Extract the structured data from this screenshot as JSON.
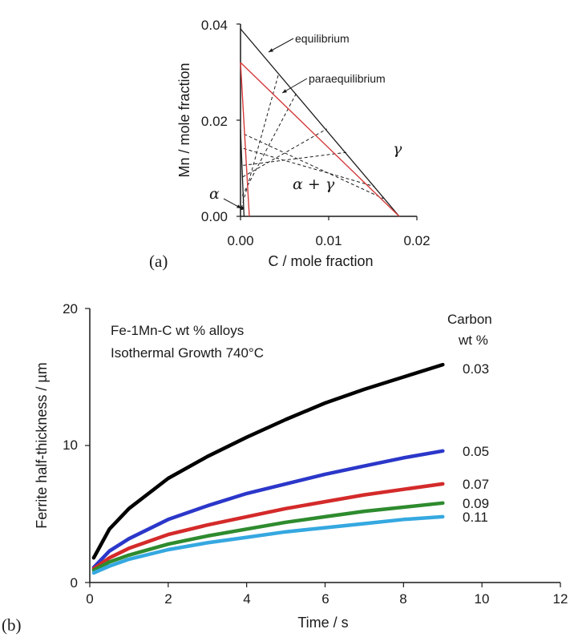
{
  "chart_data": [
    {
      "panel": "(a)",
      "type": "line",
      "xlabel": "C / mole fraction",
      "ylabel": "Mn / mole fraction",
      "xlim": [
        0,
        0.02
      ],
      "ylim": [
        0,
        0.04
      ],
      "x_ticks": [
        "0.00",
        "0.01",
        "0.02"
      ],
      "y_ticks": [
        "0.00",
        "0.02",
        "0.04"
      ],
      "annotations": {
        "equilibrium": "equilibrium",
        "paraequilibrium": "paraequilibrium",
        "alpha": "α",
        "gamma": "γ",
        "two_phase": "α + γ"
      },
      "colors": {
        "equilibrium": "#1a1a1a",
        "paraequilibrium": "#d43a3a",
        "tie": "#1a1a1a"
      },
      "series": [
        {
          "key": "eq-gamma",
          "role": "equilibrium",
          "x": [
            0.0,
            0.018
          ],
          "y": [
            0.039,
            0.0
          ]
        },
        {
          "key": "eq-alpha",
          "role": "equilibrium",
          "x": [
            0.0,
            0.0004
          ],
          "y": [
            0.018,
            0.0
          ]
        },
        {
          "key": "pe-gamma",
          "role": "paraequilibrium",
          "x": [
            0.0,
            0.018
          ],
          "y": [
            0.032,
            0.0
          ]
        },
        {
          "key": "pe-alpha",
          "role": "paraequilibrium",
          "x": [
            0.0,
            0.001
          ],
          "y": [
            0.032,
            0.0
          ]
        }
      ],
      "tie_lines": [
        {
          "x": [
            0.0001,
            0.0043
          ],
          "y": [
            0.0017,
            0.0295
          ]
        },
        {
          "x": [
            0.0002,
            0.0063
          ],
          "y": [
            0.0043,
            0.0255
          ]
        },
        {
          "x": [
            0.00025,
            0.0098
          ],
          "y": [
            0.0082,
            0.0182
          ]
        },
        {
          "x": [
            0.0003,
            0.012
          ],
          "y": [
            0.0106,
            0.0133
          ]
        },
        {
          "x": [
            0.00035,
            0.0152
          ],
          "y": [
            0.0141,
            0.0062
          ]
        },
        {
          "x": [
            0.0004,
            0.0162
          ],
          "y": [
            0.0171,
            0.0037
          ]
        }
      ]
    },
    {
      "panel": "(b)",
      "type": "line",
      "xlabel": "Time / s",
      "ylabel": "Ferrite half-thickness / µm",
      "xlim": [
        0,
        12
      ],
      "ylim": [
        0,
        20
      ],
      "x_ticks": [
        "0",
        "2",
        "4",
        "6",
        "8",
        "10",
        "12"
      ],
      "y_ticks": [
        "0",
        "10",
        "20"
      ],
      "title_lines": [
        "Fe-1Mn-C wt % alloys",
        "Isothermal Growth  740°C"
      ],
      "legend_title": [
        "Carbon",
        "wt %"
      ],
      "x": [
        0.1,
        0.5,
        1,
        2,
        3,
        4,
        5,
        6,
        7,
        8,
        9
      ],
      "series": [
        {
          "name": "0.03",
          "color": "#000000",
          "values": [
            1.8,
            3.9,
            5.4,
            7.6,
            9.2,
            10.6,
            11.9,
            13.1,
            14.1,
            15.0,
            15.9
          ]
        },
        {
          "name": "0.05",
          "color": "#2b37c9",
          "values": [
            1.1,
            2.3,
            3.2,
            4.6,
            5.6,
            6.5,
            7.2,
            7.9,
            8.5,
            9.1,
            9.6
          ]
        },
        {
          "name": "0.07",
          "color": "#d42a2a",
          "values": [
            1.0,
            1.8,
            2.5,
            3.5,
            4.2,
            4.8,
            5.4,
            5.9,
            6.4,
            6.8,
            7.2
          ]
        },
        {
          "name": "0.09",
          "color": "#2e8b2e",
          "values": [
            0.9,
            1.5,
            2.0,
            2.8,
            3.4,
            3.9,
            4.4,
            4.8,
            5.2,
            5.5,
            5.8
          ]
        },
        {
          "name": "0.11",
          "color": "#35a8e0",
          "values": [
            0.7,
            1.2,
            1.7,
            2.4,
            2.9,
            3.3,
            3.7,
            4.0,
            4.3,
            4.6,
            4.8
          ]
        }
      ]
    }
  ]
}
